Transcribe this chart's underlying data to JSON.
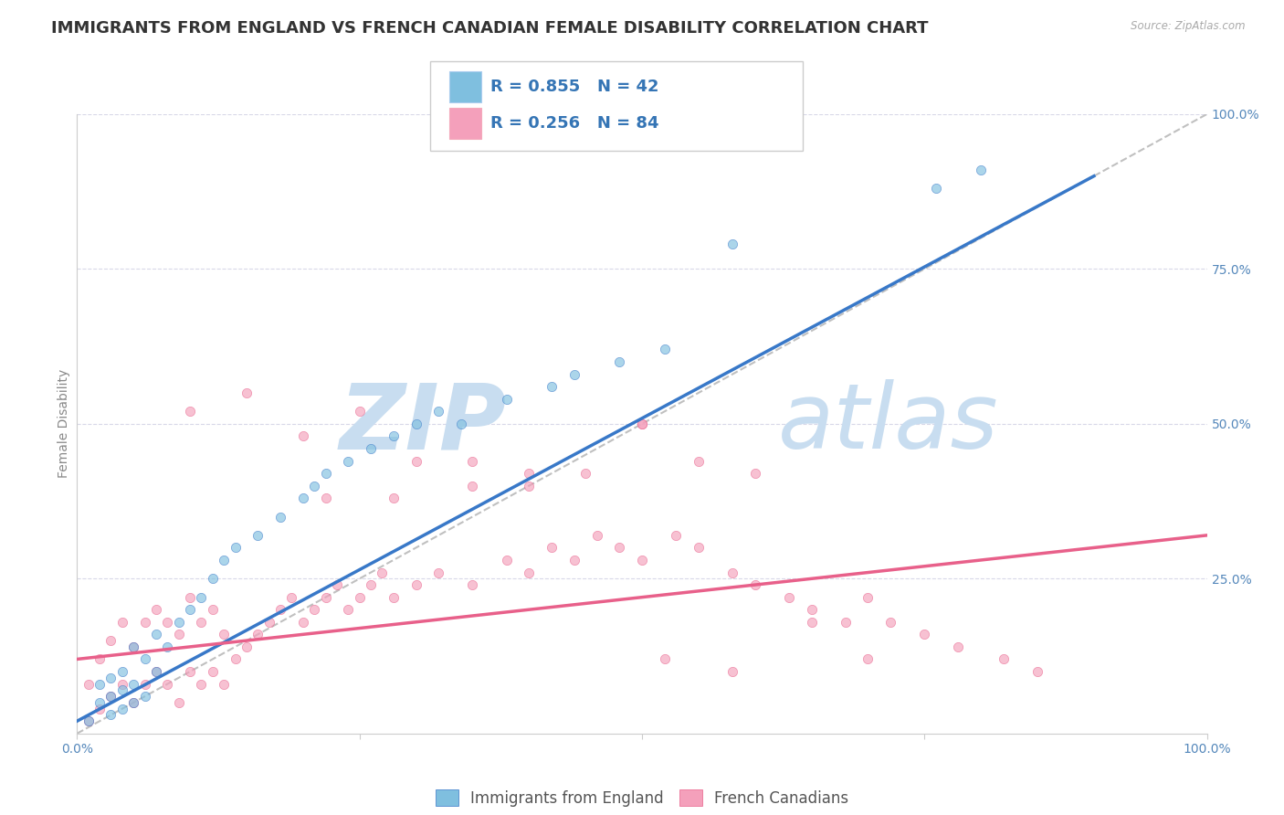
{
  "title": "IMMIGRANTS FROM ENGLAND VS FRENCH CANADIAN FEMALE DISABILITY CORRELATION CHART",
  "source": "Source: ZipAtlas.com",
  "ylabel": "Female Disability",
  "series1_label": "Immigrants from England",
  "series2_label": "French Canadians",
  "series1_color": "#7fbfdf",
  "series2_color": "#f4a0bb",
  "series1_line_color": "#3878c8",
  "series2_line_color": "#e8608a",
  "legend_color": "#3575b5",
  "legend_N_color": "#3575b5",
  "series1_R": 0.855,
  "series1_N": 42,
  "series2_R": 0.256,
  "series2_N": 84,
  "xlim": [
    0,
    1
  ],
  "ylim": [
    0,
    1
  ],
  "watermark_zip": "ZIP",
  "watermark_atlas": "atlas",
  "watermark_color": "#c8ddf0",
  "dot_size": 55,
  "dot_alpha": 0.65,
  "background_color": "#ffffff",
  "grid_color": "#d8d8e8",
  "title_fontsize": 13,
  "axis_label_fontsize": 10,
  "tick_fontsize": 10,
  "legend_fontsize": 13,
  "series1_x": [
    0.01,
    0.02,
    0.02,
    0.03,
    0.03,
    0.03,
    0.04,
    0.04,
    0.04,
    0.05,
    0.05,
    0.05,
    0.06,
    0.06,
    0.07,
    0.07,
    0.08,
    0.09,
    0.1,
    0.11,
    0.12,
    0.13,
    0.14,
    0.16,
    0.18,
    0.2,
    0.21,
    0.22,
    0.24,
    0.26,
    0.28,
    0.3,
    0.32,
    0.34,
    0.38,
    0.42,
    0.44,
    0.48,
    0.52,
    0.58,
    0.76,
    0.8
  ],
  "series1_y": [
    0.02,
    0.05,
    0.08,
    0.03,
    0.06,
    0.09,
    0.04,
    0.07,
    0.1,
    0.05,
    0.08,
    0.14,
    0.06,
    0.12,
    0.1,
    0.16,
    0.14,
    0.18,
    0.2,
    0.22,
    0.25,
    0.28,
    0.3,
    0.32,
    0.35,
    0.38,
    0.4,
    0.42,
    0.44,
    0.46,
    0.48,
    0.5,
    0.52,
    0.5,
    0.54,
    0.56,
    0.58,
    0.6,
    0.62,
    0.79,
    0.88,
    0.91
  ],
  "series2_x": [
    0.01,
    0.01,
    0.02,
    0.02,
    0.03,
    0.03,
    0.04,
    0.04,
    0.05,
    0.05,
    0.06,
    0.06,
    0.07,
    0.07,
    0.08,
    0.08,
    0.09,
    0.09,
    0.1,
    0.1,
    0.11,
    0.11,
    0.12,
    0.12,
    0.13,
    0.13,
    0.14,
    0.15,
    0.16,
    0.17,
    0.18,
    0.19,
    0.2,
    0.21,
    0.22,
    0.23,
    0.24,
    0.25,
    0.26,
    0.27,
    0.28,
    0.3,
    0.32,
    0.35,
    0.38,
    0.4,
    0.42,
    0.44,
    0.46,
    0.48,
    0.5,
    0.53,
    0.55,
    0.58,
    0.6,
    0.63,
    0.65,
    0.68,
    0.7,
    0.72,
    0.75,
    0.78,
    0.82,
    0.85,
    0.1,
    0.15,
    0.2,
    0.25,
    0.3,
    0.35,
    0.4,
    0.45,
    0.5,
    0.55,
    0.6,
    0.65,
    0.7,
    0.22,
    0.28,
    0.35,
    0.4,
    0.5,
    0.52,
    0.58
  ],
  "series2_y": [
    0.02,
    0.08,
    0.04,
    0.12,
    0.06,
    0.15,
    0.08,
    0.18,
    0.05,
    0.14,
    0.08,
    0.18,
    0.1,
    0.2,
    0.08,
    0.18,
    0.05,
    0.16,
    0.1,
    0.22,
    0.08,
    0.18,
    0.1,
    0.2,
    0.08,
    0.16,
    0.12,
    0.14,
    0.16,
    0.18,
    0.2,
    0.22,
    0.18,
    0.2,
    0.22,
    0.24,
    0.2,
    0.22,
    0.24,
    0.26,
    0.22,
    0.24,
    0.26,
    0.24,
    0.28,
    0.26,
    0.3,
    0.28,
    0.32,
    0.3,
    0.28,
    0.32,
    0.3,
    0.26,
    0.24,
    0.22,
    0.2,
    0.18,
    0.22,
    0.18,
    0.16,
    0.14,
    0.12,
    0.1,
    0.52,
    0.55,
    0.48,
    0.52,
    0.44,
    0.44,
    0.42,
    0.42,
    0.5,
    0.44,
    0.42,
    0.18,
    0.12,
    0.38,
    0.38,
    0.4,
    0.4,
    0.5,
    0.12,
    0.1
  ]
}
